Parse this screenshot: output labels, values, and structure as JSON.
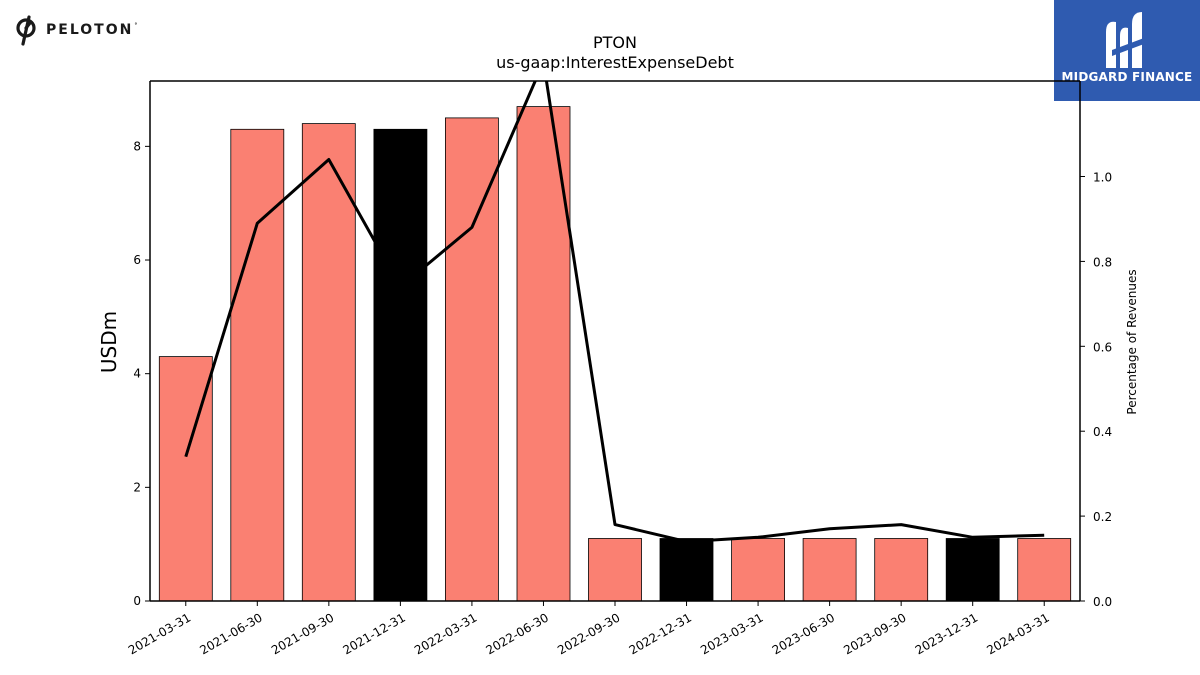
{
  "brand_left": {
    "name": "PELOTON",
    "tm": "°"
  },
  "brand_right": {
    "name": "MIDGARD FINANCE"
  },
  "colors": {
    "bar": "#fa8072",
    "bar_highlight": "#000000",
    "line": "#000000",
    "badge_bg": "#2f5bb0"
  },
  "chart_data": {
    "type": "bar",
    "title": "PTON",
    "subtitle": "us-gaap:InterestExpenseDebt",
    "ylabel": "USDm",
    "y2label": "Percentage of Revenues",
    "categories": [
      "2021-03-31",
      "2021-06-30",
      "2021-09-30",
      "2021-12-31",
      "2022-03-31",
      "2022-06-30",
      "2022-09-30",
      "2022-12-31",
      "2023-03-31",
      "2023-06-30",
      "2023-09-30",
      "2023-12-31",
      "2024-03-31"
    ],
    "series": [
      {
        "values": [
          4.3,
          8.3,
          8.4,
          8.3,
          8.5,
          8.7,
          1.1,
          1.1,
          1.1,
          1.1,
          1.1,
          1.1,
          1.1
        ],
        "highlight": [
          false,
          false,
          false,
          true,
          false,
          false,
          false,
          true,
          false,
          false,
          false,
          true,
          false
        ]
      },
      {
        "type": "line",
        "axis": "right",
        "values": [
          0.34,
          0.89,
          1.04,
          0.74,
          0.88,
          1.27,
          0.18,
          0.14,
          0.15,
          0.17,
          0.18,
          0.15,
          0.155
        ]
      }
    ],
    "ylim": [
      0,
      9.15
    ],
    "y2lim": [
      0,
      1.225
    ],
    "yticks": [
      0,
      2,
      4,
      6,
      8
    ],
    "y2ticks": [
      0.0,
      0.2,
      0.4,
      0.6,
      0.8,
      1.0
    ],
    "grid": false,
    "legend": "none"
  }
}
